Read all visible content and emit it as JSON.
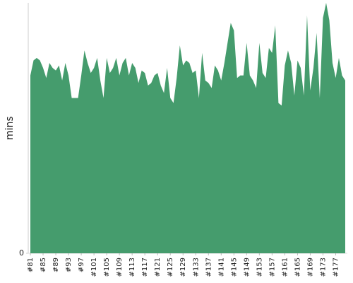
{
  "chart_data": {
    "type": "area",
    "y_label": "mins",
    "categories": [
      "#81",
      null,
      null,
      null,
      "#85",
      null,
      null,
      null,
      "#89",
      null,
      null,
      null,
      "#93",
      null,
      null,
      null,
      "#97",
      null,
      null,
      null,
      "#101",
      null,
      null,
      null,
      "#105",
      null,
      null,
      null,
      "#109",
      null,
      null,
      null,
      "#113",
      null,
      null,
      null,
      "#117",
      null,
      null,
      null,
      "#121",
      null,
      null,
      null,
      "#125",
      null,
      null,
      null,
      "#129",
      null,
      null,
      null,
      "#133",
      null,
      null,
      null,
      "#137",
      null,
      null,
      null,
      "#141",
      null,
      null,
      null,
      "#145",
      null,
      null,
      null,
      "#149",
      null,
      null,
      null,
      "#153",
      null,
      null,
      null,
      "#157",
      null,
      null,
      null,
      "#161",
      null,
      null,
      null,
      "#165",
      null,
      null,
      null,
      "#169",
      null,
      null,
      null,
      "#173",
      null,
      null,
      null,
      "#177",
      null,
      null,
      null
    ],
    "values": [
      71,
      77,
      78,
      77,
      74,
      70,
      76,
      74,
      73,
      75,
      69,
      76,
      71,
      62,
      62,
      62,
      71,
      81,
      76,
      72,
      74,
      78,
      69,
      62,
      78,
      72,
      74,
      78,
      71,
      76,
      78,
      71,
      76,
      74,
      68,
      73,
      72,
      67,
      68,
      71,
      72,
      67,
      64,
      74,
      62,
      60,
      70,
      83,
      75,
      77,
      76,
      72,
      73,
      62,
      80,
      69,
      68,
      66,
      75,
      73,
      69,
      76,
      84,
      92,
      89,
      70,
      71,
      71,
      84,
      71,
      69,
      66,
      84,
      72,
      70,
      82,
      80,
      91,
      60,
      59,
      75,
      81,
      76,
      63,
      77,
      74,
      63,
      95,
      65,
      74,
      88,
      62,
      94,
      100,
      93,
      76,
      70,
      78,
      71,
      69
    ],
    "color": "#459c6d",
    "ylim": [
      0,
      100
    ],
    "yticks": [
      0
    ]
  }
}
